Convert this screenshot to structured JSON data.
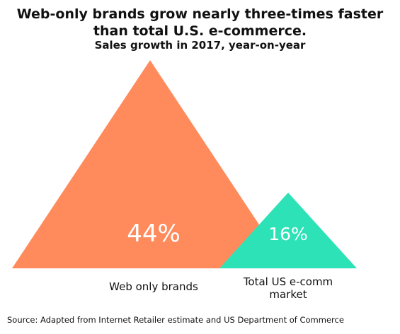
{
  "chart_data": {
    "type": "triangle-comparison",
    "title_line1": "Web-only brands grow nearly three-times faster",
    "title_line2": "than total U.S. e-commerce.",
    "subtitle": "Sales growth in 2017, year-on-year",
    "series": [
      {
        "name": "Web only brands",
        "value": 44,
        "label": "44%",
        "color": "#FF8A5C"
      },
      {
        "name": "Total US e-comm market",
        "label_line1": "Total US e-comm",
        "label_line2": "market",
        "value": 16,
        "label": "16%",
        "color": "#2EE2B8"
      }
    ],
    "source": "Source: Adapted from Internet Retailer estimate and US Department of Commerce"
  }
}
